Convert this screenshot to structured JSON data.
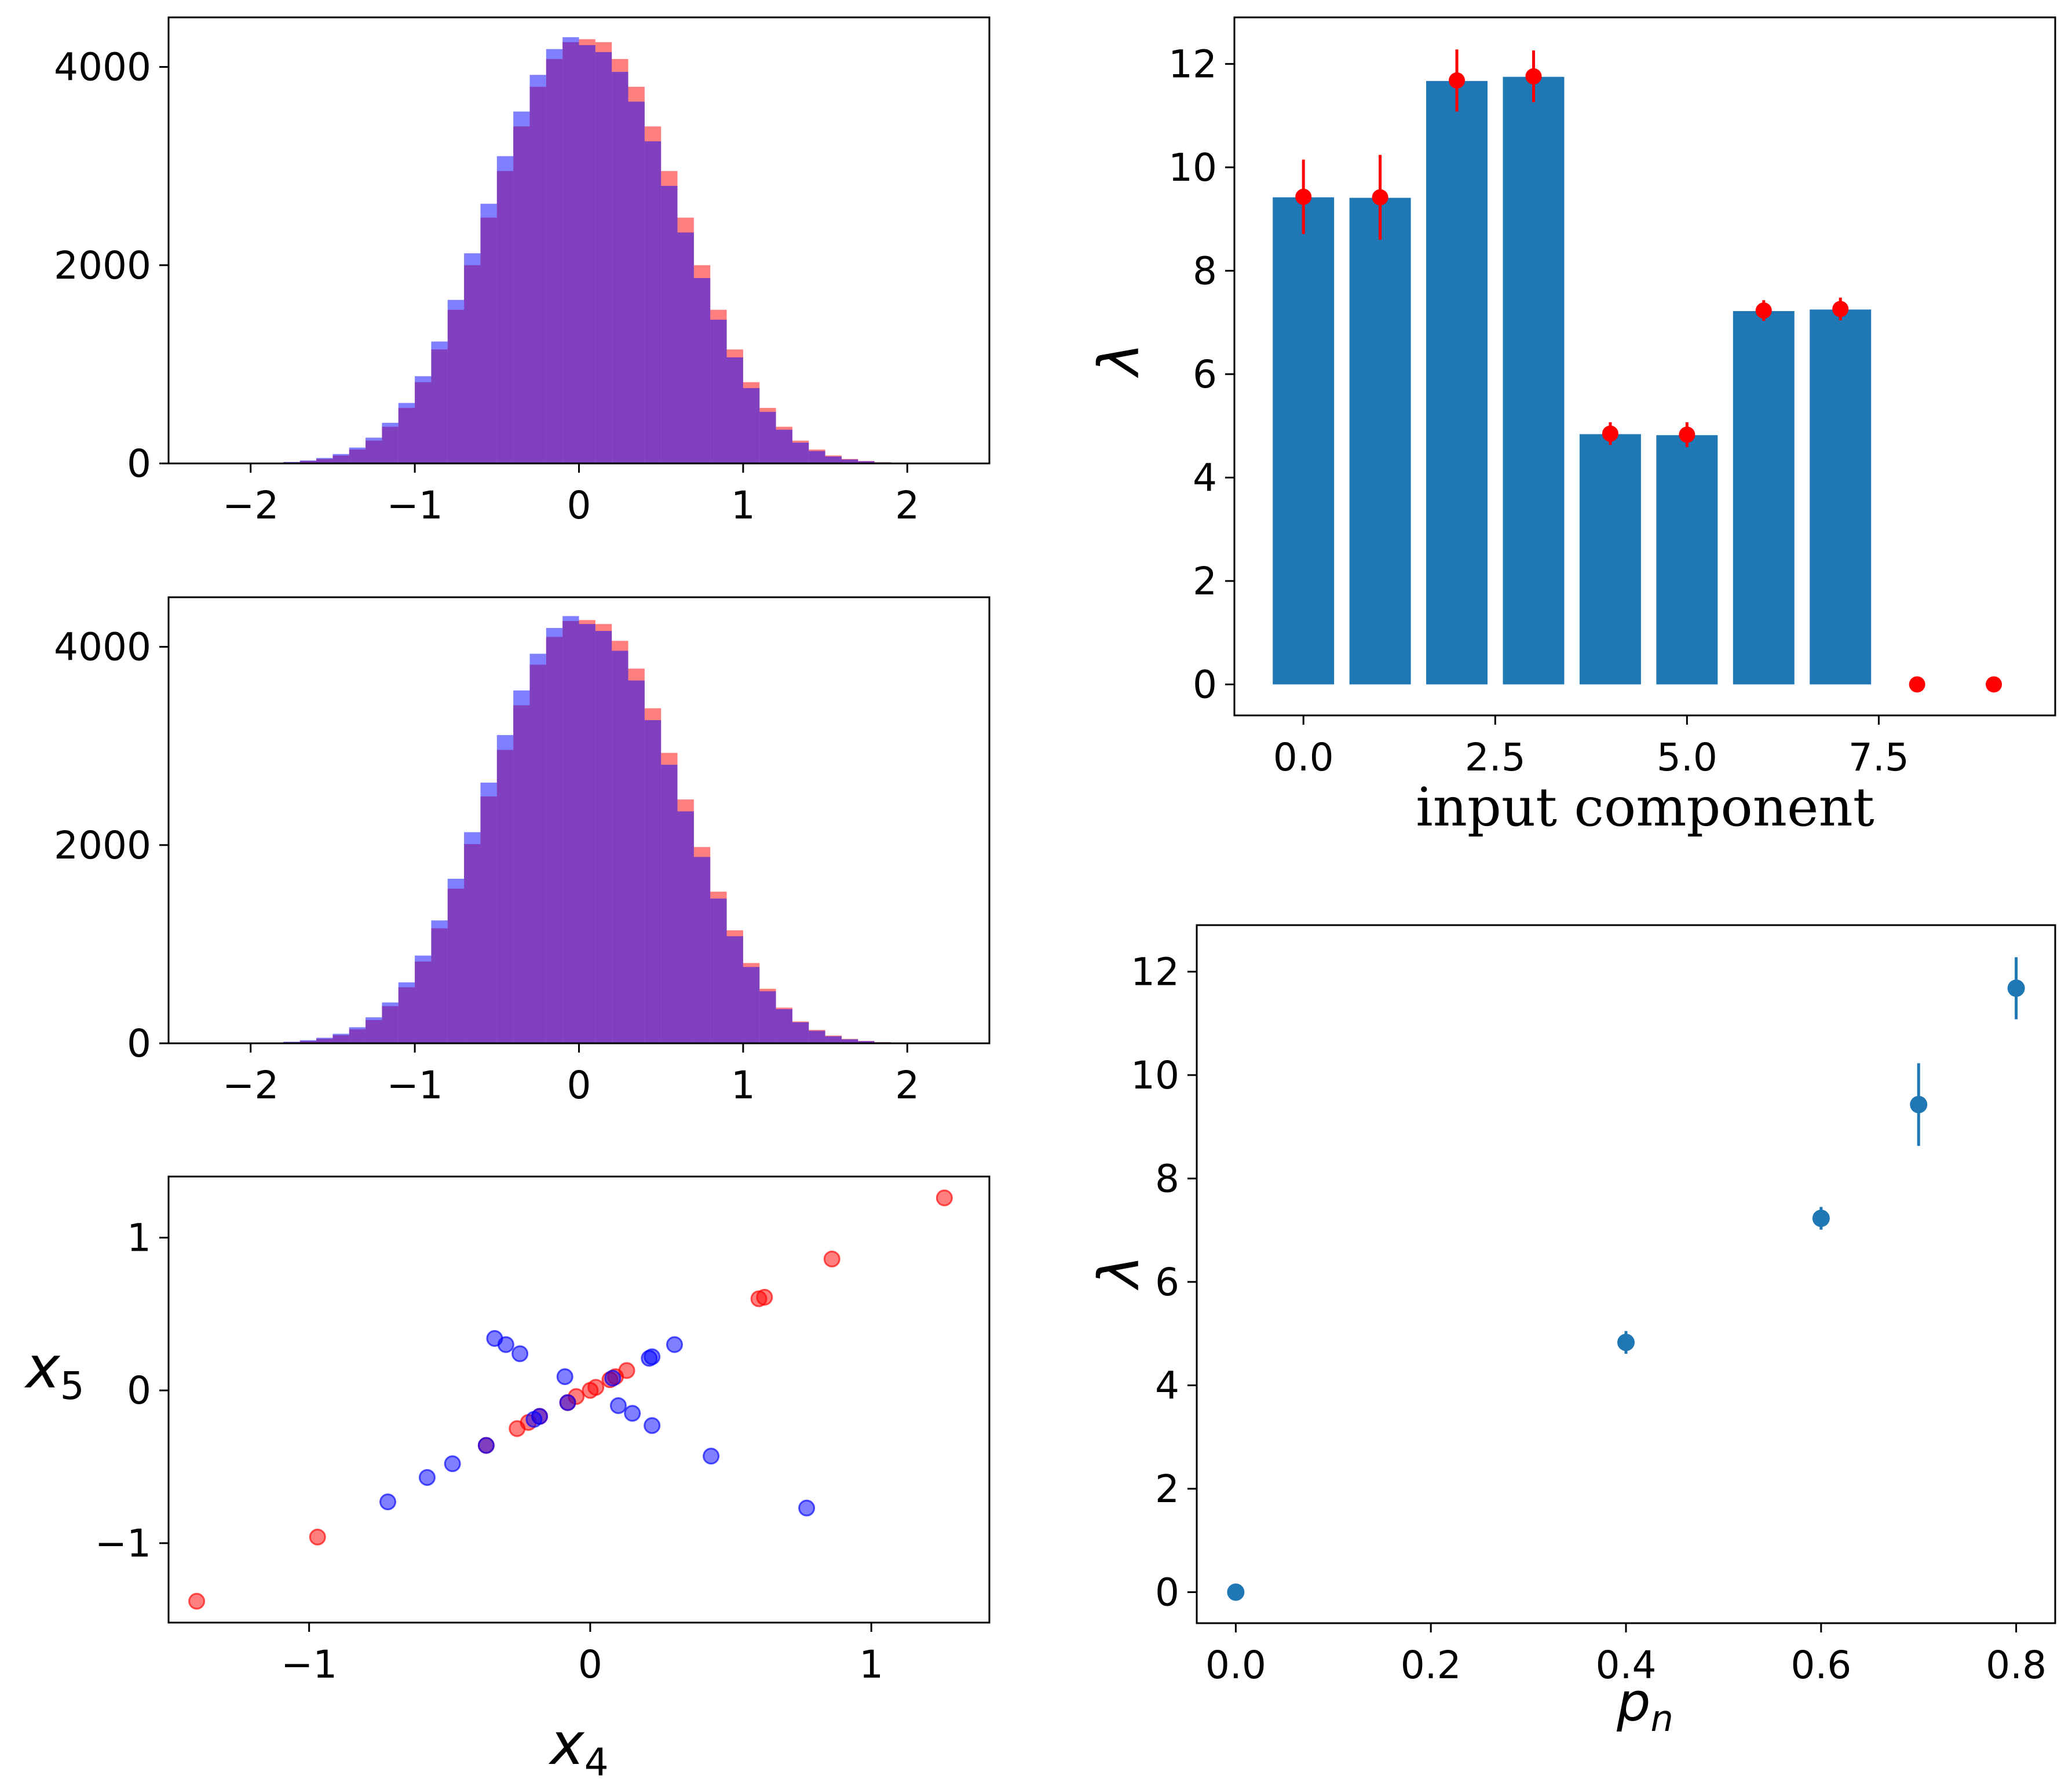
{
  "colors": {
    "hist_red": "#ff0000",
    "hist_blue": "#0000ff",
    "scatter_red": "#ff0000",
    "scatter_blue": "#0000ff",
    "bar": "#1f77b4",
    "errorbar_red": "#ff0000",
    "point_blue": "#1f77b4"
  },
  "chart_data": [
    {
      "id": "hist_top",
      "type": "bar",
      "title": "",
      "xlabel": "",
      "ylabel": "",
      "xlim": [
        -2.5,
        2.5
      ],
      "ylim": [
        0,
        4500
      ],
      "xticks": [
        -2,
        -1,
        0,
        1,
        2
      ],
      "xtick_labels": [
        "−2",
        "−1",
        "0",
        "1",
        "2"
      ],
      "yticks": [
        0,
        2000,
        4000
      ],
      "ytick_labels": [
        "0",
        "2000",
        "4000"
      ],
      "bins": {
        "start": -2.0,
        "width": 0.1,
        "count": 40
      },
      "series": [
        {
          "name": "red",
          "opacity": 0.5,
          "values": [
            3,
            6,
            12,
            25,
            45,
            80,
            140,
            230,
            370,
            560,
            820,
            1150,
            1550,
            2000,
            2480,
            2950,
            3400,
            3800,
            4080,
            4250,
            4280,
            4250,
            4080,
            3800,
            3400,
            2950,
            2480,
            2000,
            1550,
            1150,
            820,
            560,
            370,
            230,
            140,
            80,
            45,
            25,
            12,
            6
          ]
        },
        {
          "name": "blue",
          "opacity": 0.5,
          "values": [
            4,
            8,
            15,
            30,
            55,
            95,
            160,
            260,
            410,
            610,
            880,
            1230,
            1650,
            2120,
            2620,
            3100,
            3550,
            3920,
            4180,
            4300,
            4220,
            4150,
            3950,
            3650,
            3250,
            2800,
            2330,
            1870,
            1450,
            1070,
            760,
            520,
            340,
            210,
            125,
            70,
            40,
            22,
            10,
            5
          ]
        }
      ]
    },
    {
      "id": "hist_mid",
      "type": "bar",
      "title": "",
      "xlabel": "",
      "ylabel": "",
      "xlim": [
        -2.5,
        2.5
      ],
      "ylim": [
        0,
        4500
      ],
      "xticks": [
        -2,
        -1,
        0,
        1,
        2
      ],
      "xtick_labels": [
        "−2",
        "−1",
        "0",
        "1",
        "2"
      ],
      "yticks": [
        0,
        2000,
        4000
      ],
      "ytick_labels": [
        "0",
        "2000",
        "4000"
      ],
      "bins": {
        "start": -2.0,
        "width": 0.1,
        "count": 40
      },
      "series": [
        {
          "name": "red",
          "opacity": 0.5,
          "values": [
            2,
            5,
            11,
            24,
            46,
            82,
            142,
            235,
            375,
            565,
            825,
            1160,
            1560,
            2010,
            2490,
            2960,
            3410,
            3820,
            4100,
            4260,
            4270,
            4230,
            4060,
            3780,
            3380,
            2930,
            2460,
            1980,
            1530,
            1140,
            810,
            550,
            360,
            220,
            135,
            78,
            44,
            24,
            11,
            5
          ]
        },
        {
          "name": "blue",
          "opacity": 0.5,
          "values": [
            4,
            8,
            16,
            31,
            56,
            96,
            162,
            262,
            412,
            615,
            885,
            1240,
            1660,
            2130,
            2630,
            3110,
            3560,
            3930,
            4190,
            4310,
            4230,
            4160,
            3960,
            3660,
            3260,
            2810,
            2340,
            1880,
            1460,
            1080,
            770,
            525,
            345,
            212,
            126,
            71,
            40,
            22,
            10,
            5
          ]
        }
      ]
    },
    {
      "id": "scatter",
      "type": "scatter",
      "title": "",
      "xlabel": "x₄",
      "ylabel": "x₅",
      "xlabel_base": "x",
      "xlabel_sub": "4",
      "ylabel_base": "x",
      "ylabel_sub": "5",
      "xlim": [
        -1.5,
        1.42
      ],
      "ylim": [
        -1.52,
        1.4
      ],
      "xticks": [
        -1,
        0,
        1
      ],
      "xtick_labels": [
        "−1",
        "0",
        "1"
      ],
      "yticks": [
        -1,
        0,
        1
      ],
      "ytick_labels": [
        "−1",
        "0",
        "1"
      ],
      "series": [
        {
          "name": "red",
          "opacity": 0.5,
          "points": [
            [
              -1.4,
              -1.38
            ],
            [
              -0.97,
              -0.96
            ],
            [
              -0.37,
              -0.36
            ],
            [
              -0.26,
              -0.25
            ],
            [
              -0.22,
              -0.21
            ],
            [
              -0.18,
              -0.17
            ],
            [
              -0.08,
              -0.08
            ],
            [
              -0.05,
              -0.04
            ],
            [
              0.0,
              0.0
            ],
            [
              0.02,
              0.02
            ],
            [
              0.07,
              0.07
            ],
            [
              0.09,
              0.09
            ],
            [
              0.13,
              0.13
            ],
            [
              0.6,
              0.6
            ],
            [
              0.62,
              0.61
            ],
            [
              0.86,
              0.86
            ],
            [
              1.26,
              1.26
            ]
          ]
        },
        {
          "name": "blue",
          "opacity": 0.5,
          "points": [
            [
              -0.34,
              0.34
            ],
            [
              -0.3,
              0.3
            ],
            [
              -0.25,
              0.24
            ],
            [
              -0.09,
              0.09
            ],
            [
              0.21,
              0.21
            ],
            [
              0.22,
              0.22
            ],
            [
              0.3,
              0.3
            ],
            [
              -0.72,
              -0.73
            ],
            [
              -0.58,
              -0.57
            ],
            [
              -0.49,
              -0.48
            ],
            [
              -0.37,
              -0.36
            ],
            [
              -0.2,
              -0.19
            ],
            [
              -0.18,
              -0.17
            ],
            [
              -0.08,
              -0.08
            ],
            [
              0.08,
              0.08
            ],
            [
              0.1,
              -0.1
            ],
            [
              0.15,
              -0.15
            ],
            [
              0.22,
              -0.23
            ],
            [
              0.43,
              -0.43
            ],
            [
              0.77,
              -0.77
            ]
          ]
        }
      ]
    },
    {
      "id": "bars_lambda",
      "type": "bar",
      "title": "",
      "xlabel": "input component",
      "ylabel": "λ",
      "xlim": [
        -0.9,
        9.8
      ],
      "ylim": [
        -0.6,
        12.9
      ],
      "xticks": [
        0.0,
        2.5,
        5.0,
        7.5
      ],
      "xtick_labels": [
        "0.0",
        "2.5",
        "5.0",
        "7.5"
      ],
      "yticks": [
        0,
        2,
        4,
        6,
        8,
        10,
        12
      ],
      "ytick_labels": [
        "0",
        "2",
        "4",
        "6",
        "8",
        "10",
        "12"
      ],
      "categories": [
        0,
        1,
        2,
        3,
        4,
        5,
        6,
        7,
        8,
        9
      ],
      "values": [
        9.42,
        9.41,
        11.67,
        11.75,
        4.84,
        4.82,
        7.22,
        7.25,
        0,
        0
      ],
      "errorbar_series": {
        "x": [
          0,
          1,
          2,
          3,
          4,
          5,
          6,
          7,
          8,
          9
        ],
        "y": [
          9.43,
          9.42,
          11.68,
          11.76,
          4.85,
          4.83,
          7.23,
          7.26,
          0,
          0
        ],
        "yerr": [
          0.72,
          0.82,
          0.6,
          0.5,
          0.22,
          0.24,
          0.2,
          0.22,
          0,
          0
        ]
      }
    },
    {
      "id": "lambda_vs_pn",
      "type": "scatter",
      "title": "",
      "xlabel": "pₙ",
      "ylabel": "λ",
      "xlabel_base": "p",
      "xlabel_sub": "n",
      "xlim": [
        -0.04,
        0.84
      ],
      "ylim": [
        -0.6,
        12.9
      ],
      "xticks": [
        0.0,
        0.2,
        0.4,
        0.6,
        0.8
      ],
      "xtick_labels": [
        "0.0",
        "0.2",
        "0.4",
        "0.6",
        "0.8"
      ],
      "yticks": [
        0,
        2,
        4,
        6,
        8,
        10,
        12
      ],
      "ytick_labels": [
        "0",
        "2",
        "4",
        "6",
        "8",
        "10",
        "12"
      ],
      "x": [
        0.0,
        0.4,
        0.6,
        0.7,
        0.8
      ],
      "y": [
        0.0,
        4.83,
        7.23,
        9.43,
        11.68
      ],
      "yerr": [
        0.0,
        0.22,
        0.22,
        0.8,
        0.6
      ]
    }
  ]
}
